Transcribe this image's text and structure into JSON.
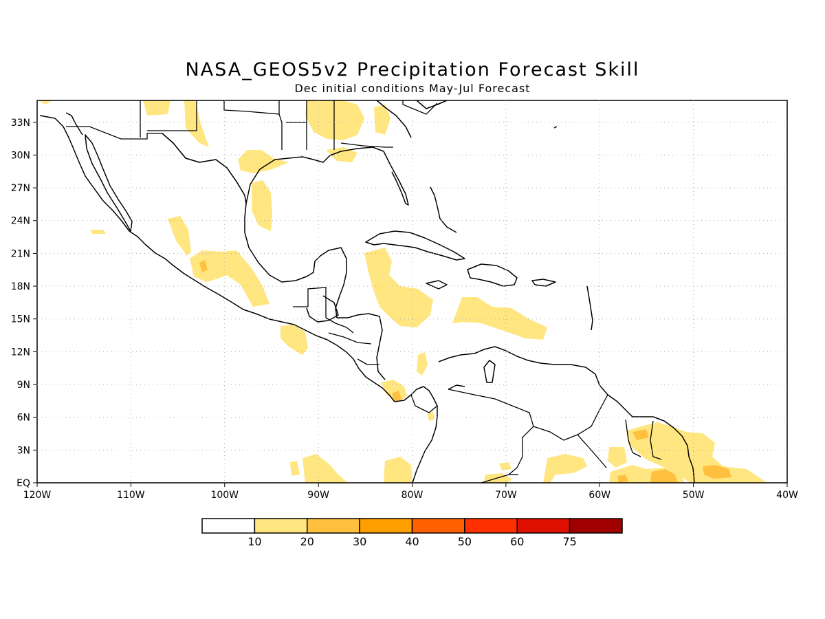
{
  "title": "NASA_GEOS5v2 Precipitation Forecast Skill",
  "subtitle": "Dec initial conditions   May-Jul Forecast",
  "map": {
    "lon_range": [
      -120,
      -40
    ],
    "lat_range": [
      0,
      35
    ],
    "grid": "dotted",
    "x_ticks": [
      {
        "lon": -120,
        "label": "120W"
      },
      {
        "lon": -110,
        "label": "110W"
      },
      {
        "lon": -100,
        "label": "100W"
      },
      {
        "lon": -90,
        "label": "90W"
      },
      {
        "lon": -80,
        "label": "80W"
      },
      {
        "lon": -70,
        "label": "70W"
      },
      {
        "lon": -60,
        "label": "60W"
      },
      {
        "lon": -50,
        "label": "50W"
      },
      {
        "lon": -40,
        "label": "40W"
      }
    ],
    "y_ticks": [
      {
        "lat": 0,
        "label": "EQ"
      },
      {
        "lat": 3,
        "label": "3N"
      },
      {
        "lat": 6,
        "label": "6N"
      },
      {
        "lat": 9,
        "label": "9N"
      },
      {
        "lat": 12,
        "label": "12N"
      },
      {
        "lat": 15,
        "label": "15N"
      },
      {
        "lat": 18,
        "label": "18N"
      },
      {
        "lat": 21,
        "label": "21N"
      },
      {
        "lat": 24,
        "label": "24N"
      },
      {
        "lat": 27,
        "label": "27N"
      },
      {
        "lat": 30,
        "label": "30N"
      },
      {
        "lat": 33,
        "label": "33N"
      }
    ],
    "colors": {
      "band_10_20": "#ffe680",
      "band_20_30": "#ffc040",
      "coast": "#000000",
      "grid": "#aaaaaa"
    }
  },
  "colorbar": {
    "colors": [
      "#ffffff",
      "#ffe680",
      "#ffc040",
      "#ffa000",
      "#ff6000",
      "#ff3000",
      "#e01000",
      "#a00000"
    ],
    "labels": [
      "10",
      "20",
      "30",
      "40",
      "50",
      "60",
      "75"
    ]
  }
}
